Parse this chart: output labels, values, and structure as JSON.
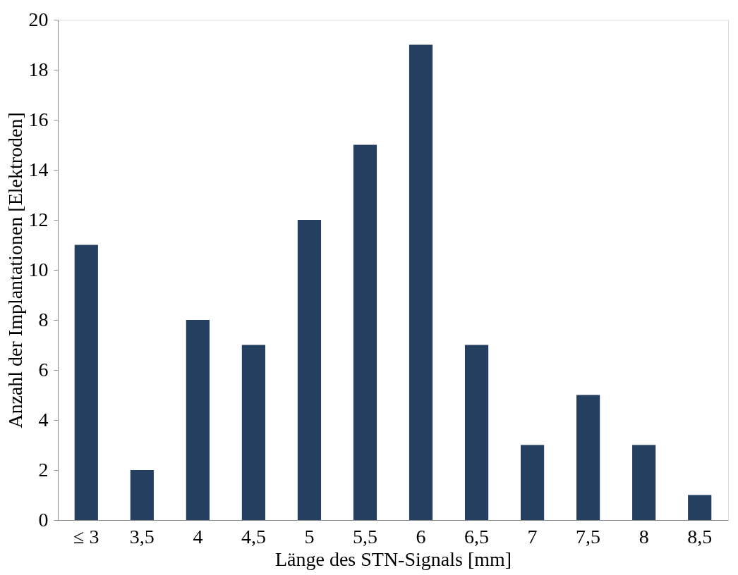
{
  "chart_data": {
    "type": "bar",
    "xlabel": "Länge des STN-Signals [mm]",
    "ylabel": "Anzahl der Implantationen [Elektroden]",
    "categories": [
      "≤ 3",
      "3,5",
      "4",
      "4,5",
      "5",
      "5,5",
      "6",
      "6,5",
      "7",
      "7,5",
      "8",
      "8,5"
    ],
    "values": [
      11,
      2,
      8,
      7,
      12,
      15,
      19,
      7,
      3,
      5,
      3,
      1
    ],
    "color": "#243f60",
    "ylim": [
      0,
      20
    ],
    "yticks": [
      0,
      2,
      4,
      6,
      8,
      10,
      12,
      14,
      16,
      18,
      20
    ],
    "grid": false
  }
}
